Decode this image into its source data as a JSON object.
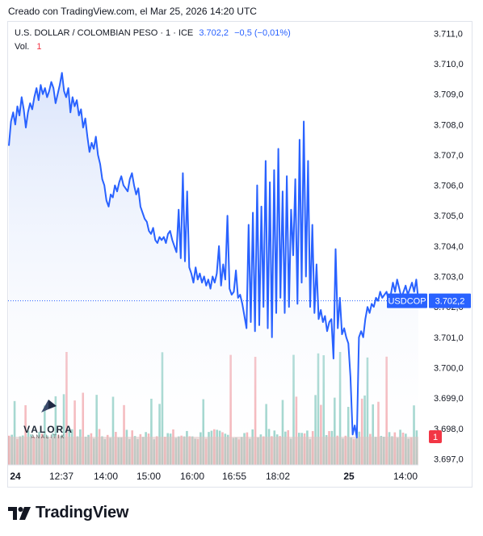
{
  "header": {
    "caption": "Creado con TradingView.com, el Mar 25, 2026 14:20 UTC"
  },
  "legend": {
    "symbol": "U.S. DOLLAR / COLOMBIAN PESO · 1 · ICE",
    "price": "3.702,2",
    "change": "−0,5 (−0,01%)",
    "volume_label": "Vol.",
    "volume_value": "1"
  },
  "chart_data": {
    "type": "line",
    "title": "U.S. DOLLAR / COLOMBIAN PESO · 1 · ICE",
    "x_tick_labels": [
      "24",
      "12:37",
      "14:00",
      "15:00",
      "16:00",
      "16:55",
      "18:02",
      "25",
      "14:00"
    ],
    "y_tick_labels": [
      "3.711,0",
      "3.710,0",
      "3.709,0",
      "3.708,0",
      "3.707,0",
      "3.706,0",
      "3.705,0",
      "3.704,0",
      "3.703,0",
      "3.702,0",
      "3.701,0",
      "3.700,0",
      "3.699,0",
      "3.698,0",
      "3.697,0"
    ],
    "ylim": [
      3696.8,
      3711.3
    ],
    "price_series": {
      "name": "USDCOP",
      "values": [
        3707.3,
        3708.1,
        3708.4,
        3708.0,
        3708.6,
        3708.3,
        3708.9,
        3708.5,
        3707.9,
        3708.4,
        3708.7,
        3708.5,
        3708.9,
        3709.2,
        3708.8,
        3709.3,
        3709.0,
        3709.2,
        3708.9,
        3709.1,
        3709.4,
        3709.2,
        3708.7,
        3709.0,
        3709.3,
        3709.7,
        3709.1,
        3708.9,
        3709.2,
        3708.4,
        3708.9,
        3708.6,
        3708.8,
        3708.3,
        3708.5,
        3707.9,
        3708.2,
        3707.6,
        3707.1,
        3707.4,
        3707.2,
        3707.6,
        3707.0,
        3706.7,
        3706.2,
        3706.0,
        3705.5,
        3705.3,
        3705.7,
        3705.6,
        3706.0,
        3705.8,
        3706.1,
        3706.3,
        3706.0,
        3705.9,
        3705.8,
        3706.2,
        3706.4,
        3706.0,
        3705.7,
        3705.9,
        3705.3,
        3705.1,
        3704.9,
        3704.8,
        3704.5,
        3704.4,
        3704.6,
        3704.2,
        3704.1,
        3704.3,
        3704.2,
        3704.3,
        3704.1,
        3704.4,
        3704.5,
        3704.2,
        3704.0,
        3703.8,
        3705.2,
        3703.6,
        3706.4,
        3703.5,
        3705.8,
        3703.3,
        3703.1,
        3702.8,
        3703.3,
        3702.9,
        3703.1,
        3702.8,
        3703.0,
        3702.7,
        3702.9,
        3702.6,
        3703.0,
        3702.8,
        3703.1,
        3704.0,
        3702.7,
        3703.4,
        3702.9,
        3705.0,
        3702.6,
        3702.4,
        3702.5,
        3703.2,
        3702.3,
        3702.4,
        3702.1,
        3701.7,
        3701.3,
        3704.7,
        3701.5,
        3705.1,
        3701.2,
        3706.0,
        3701.4,
        3705.3,
        3702.0,
        3706.8,
        3701.3,
        3706.1,
        3701.0,
        3706.5,
        3701.8,
        3707.2,
        3702.3,
        3705.8,
        3701.8,
        3706.3,
        3702.0,
        3705.2,
        3703.7,
        3706.2,
        3702.1,
        3707.5,
        3702.8,
        3708.1,
        3703.0,
        3706.8,
        3702.0,
        3704.7,
        3701.8,
        3703.4,
        3701.6,
        3701.9,
        3701.5,
        3701.7,
        3701.2,
        3701.5,
        3701.6,
        3700.3,
        3703.9,
        3701.3,
        3702.3,
        3701.1,
        3701.3,
        3701.0,
        3700.8,
        3699.7,
        3697.8,
        3698.1,
        3697.7,
        3701.0,
        3701.2,
        3701.0,
        3701.6,
        3702.0,
        3701.8,
        3702.1,
        3702.0,
        3702.3,
        3702.2,
        3702.5,
        3702.3,
        3702.4,
        3702.5,
        3702.2,
        3702.4,
        3702.8,
        3702.5,
        3702.9,
        3702.6,
        3702.3,
        3702.5,
        3702.7,
        3702.4,
        3702.6,
        3702.8,
        3702.5,
        3702.9,
        3702.2
      ],
      "line_color": "#2962ff",
      "fill_color": "#dbe5fb"
    },
    "last_price_label": {
      "series": "USDCOP",
      "value": "3.702,2"
    },
    "volume_series": {
      "name": "Vol.",
      "max_value": 1,
      "badge": "1",
      "up_color": "#83c9be",
      "down_color": "#f2a1a6"
    }
  }
}
